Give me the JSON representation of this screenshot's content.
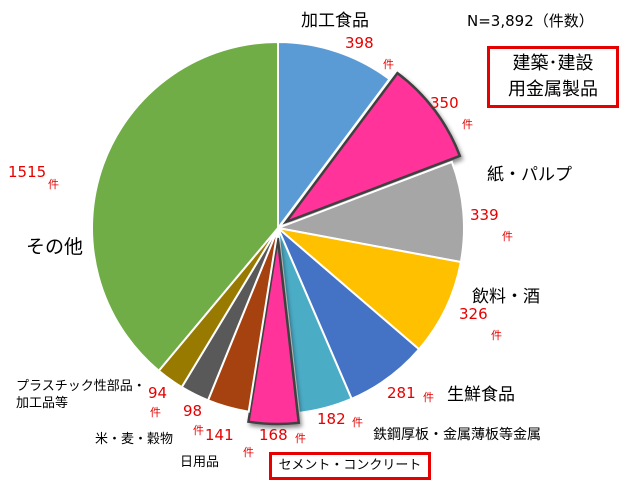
{
  "chart_data": {
    "type": "pie",
    "title": "",
    "total_label": "N=3,892（件数）",
    "unit": "件",
    "slices": [
      {
        "name": "加工食品",
        "value": 398,
        "color": "#5b9bd5",
        "exploded": false
      },
      {
        "name": "建築･建設\n用金属製品",
        "value": 350,
        "color": "#ff3399",
        "exploded": true
      },
      {
        "name": "紙・パルプ",
        "value": 339,
        "color": "#a6a6a6",
        "exploded": false
      },
      {
        "name": "飲料・酒",
        "value": 326,
        "color": "#ffc000",
        "exploded": false
      },
      {
        "name": "生鮮食品",
        "value": 281,
        "color": "#4472c4",
        "exploded": false
      },
      {
        "name": "鉄鋼厚板・金属薄板等金属",
        "value": 182,
        "color": "#4bacc6",
        "exploded": false
      },
      {
        "name": "セメント・コンクリート",
        "value": 168,
        "color": "#ff3399",
        "exploded": true
      },
      {
        "name": "日用品",
        "value": 141,
        "color": "#a5420f",
        "exploded": false
      },
      {
        "name": "米・麦・穀物",
        "value": 98,
        "color": "#595959",
        "exploded": false
      },
      {
        "name": "プラスチック性部品・\n加工品等",
        "value": 94,
        "color": "#997a00",
        "exploded": false
      },
      {
        "name": "その他",
        "value": 1515,
        "color": "#70ad47",
        "exploded": false
      }
    ]
  }
}
